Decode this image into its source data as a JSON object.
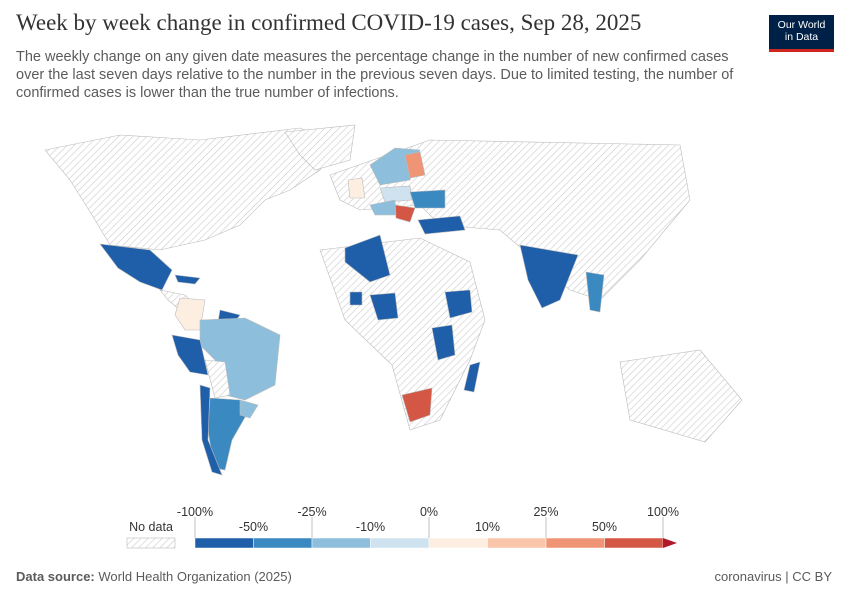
{
  "header": {
    "title": "Week by week change in confirmed COVID-19 cases, Sep 28, 2025",
    "subtitle": "The weekly change on any given date measures the percentage change in the number of new confirmed cases over the last seven days relative to the number in the previous seven days. Due to limited testing, the number of confirmed cases is lower than the true number of infections.",
    "logo": [
      "Our World",
      "in Data"
    ]
  },
  "legend": {
    "no_data": "No data",
    "upper_labels": [
      "-100%",
      "-25%",
      "0%",
      "25%",
      "100%"
    ],
    "lower_labels": [
      "-50%",
      "-10%",
      "10%",
      "50%"
    ],
    "colors": [
      "#1f5ea8",
      "#3a89c0",
      "#8dbfdc",
      "#cfe2ef",
      "#fdeee2",
      "#f9c6ab",
      "#ef9474",
      "#d35744",
      "#b2182b"
    ]
  },
  "footer": {
    "source_label": "Data source:",
    "source": "World Health Organization (2025)",
    "license": "coronavirus | CC BY"
  }
}
